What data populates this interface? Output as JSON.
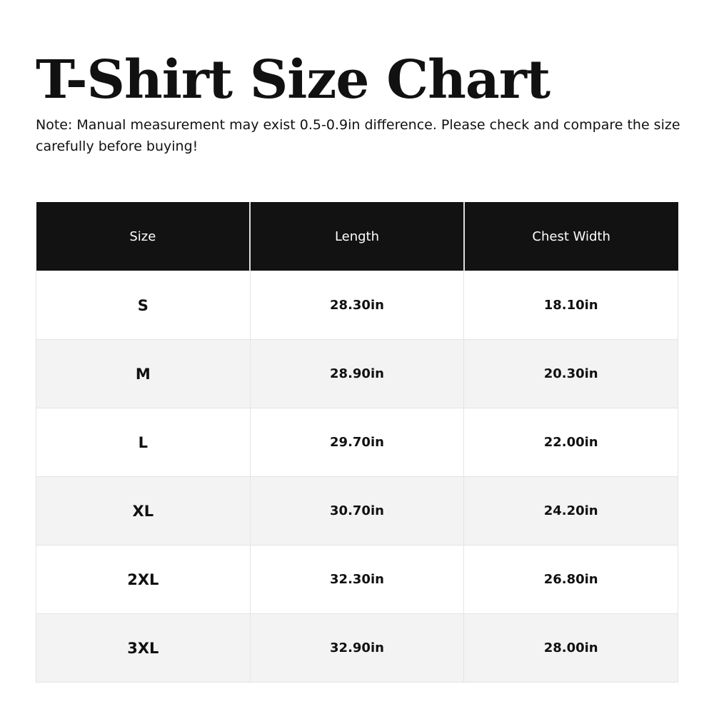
{
  "title": "T-Shirt Size Chart",
  "note": "Note: Manual measurement may exist 0.5-0.9in difference. Please check and compare the size carefully before buying!",
  "table": {
    "headers": [
      "Size",
      "Length",
      "Chest Width"
    ],
    "rows": [
      [
        "S",
        "28.30in",
        "18.10in"
      ],
      [
        "M",
        "28.90in",
        "20.30in"
      ],
      [
        "L",
        "29.70in",
        "22.00in"
      ],
      [
        "XL",
        "30.70in",
        "24.20in"
      ],
      [
        "2XL",
        "32.30in",
        "26.80in"
      ],
      [
        "3XL",
        "32.90in",
        "28.00in"
      ]
    ]
  },
  "colors": {
    "header_bg": "#121212",
    "alt_row_bg": "#f3f3f3"
  }
}
